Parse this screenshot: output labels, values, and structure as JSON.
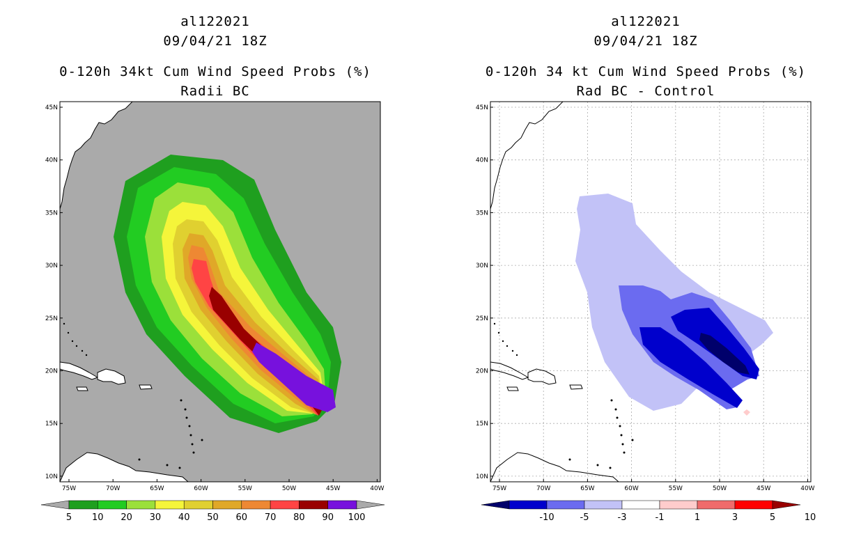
{
  "left": {
    "storm_id": "al122021",
    "datetime": "09/04/21 18Z",
    "product": "0-120h 34kt Cum Wind Speed Probs (%)",
    "subtitle": "Radii BC",
    "colorbar": {
      "labels": [
        "5",
        "10",
        "20",
        "30",
        "40",
        "50",
        "60",
        "70",
        "80",
        "90",
        "100"
      ],
      "colors": [
        "#1f9f1f",
        "#22cc22",
        "#9be03a",
        "#f5f53a",
        "#e0d030",
        "#e0a828",
        "#ee8833",
        "#ff4444",
        "#990000",
        "#7711dd"
      ],
      "extend_color": "#aaaaaa"
    }
  },
  "right": {
    "storm_id": "al122021",
    "datetime": "09/04/21 18Z",
    "product": "0-120h 34 kt Cum Wind Speed Probs (%)",
    "subtitle": "Rad BC - Control",
    "colorbar": {
      "labels": [
        "-10",
        "-5",
        "-3",
        "-1",
        "1",
        "3",
        "5",
        "10"
      ],
      "colors": [
        "#0000cc",
        "#6b6bf0",
        "#c2c2f7",
        "#ffffff",
        "#ffcccc",
        "#f06b6b",
        "#ff0000"
      ],
      "low_color": "#00006b",
      "high_color": "#990000"
    }
  },
  "map": {
    "lat_labels": [
      "45N",
      "40N",
      "35N",
      "30N",
      "25N",
      "20N",
      "15N",
      "10N"
    ],
    "lon_labels": [
      "75W",
      "70W",
      "65W",
      "60W",
      "55W",
      "50W",
      "45W",
      "40W"
    ],
    "land_color_left": "#ffffff",
    "sea_color_left": "#aaaaaa"
  }
}
